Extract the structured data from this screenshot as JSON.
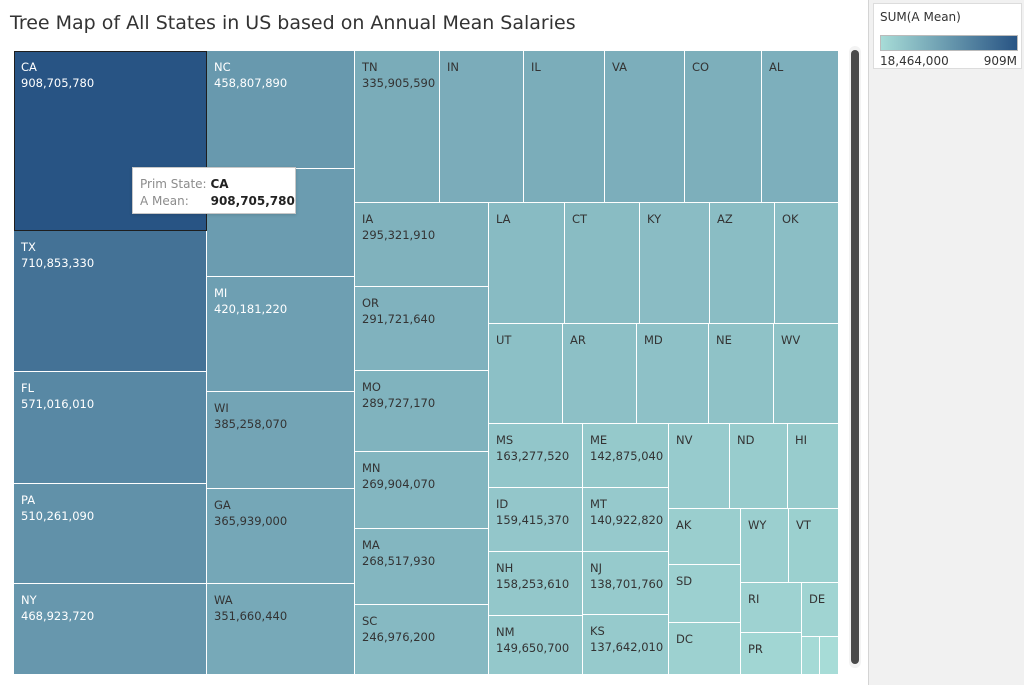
{
  "chart_data": {
    "type": "treemap",
    "title": "Tree Map of All States in US based on Annual Mean Salaries",
    "color_legend": {
      "title": "SUM(A Mean)",
      "min_label": "18,464,000",
      "max_label": "909M",
      "min_value": 18464000,
      "max_value": 909000000,
      "color_low": "#a7dcd7",
      "color_high": "#285484"
    },
    "colors": {
      "label_dark_bg": "#ffffff",
      "label_light_bg": "#333333"
    },
    "cells": [
      {
        "state": "CA",
        "value": 908705780,
        "value_label": "908,705,780"
      },
      {
        "state": "TX",
        "value": 710853330,
        "value_label": "710,853,330"
      },
      {
        "state": "FL",
        "value": 571016010,
        "value_label": "571,016,010"
      },
      {
        "state": "PA",
        "value": 510261090,
        "value_label": "510,261,090"
      },
      {
        "state": "NY",
        "value": 468923720,
        "value_label": "468,923,720"
      },
      {
        "state": "NC",
        "value": 458807890,
        "value_label": "458,807,890"
      },
      {
        "state": "",
        "value": 440000000,
        "value_label": ""
      },
      {
        "state": "MI",
        "value": 420181220,
        "value_label": "420,181,220"
      },
      {
        "state": "WI",
        "value": 385258070,
        "value_label": "385,258,070"
      },
      {
        "state": "GA",
        "value": 365939000,
        "value_label": "365,939,000"
      },
      {
        "state": "WA",
        "value": 351660440,
        "value_label": "351,660,440"
      },
      {
        "state": "TN",
        "value": 335905590,
        "value_label": "335,905,590"
      },
      {
        "state": "IN",
        "value": 330000000,
        "value_label": ""
      },
      {
        "state": "IL",
        "value": 325000000,
        "value_label": ""
      },
      {
        "state": "VA",
        "value": 320000000,
        "value_label": ""
      },
      {
        "state": "CO",
        "value": 315000000,
        "value_label": ""
      },
      {
        "state": "AL",
        "value": 310000000,
        "value_label": ""
      },
      {
        "state": "IA",
        "value": 295321910,
        "value_label": "295,321,910"
      },
      {
        "state": "OR",
        "value": 291721640,
        "value_label": "291,721,640"
      },
      {
        "state": "MO",
        "value": 289727170,
        "value_label": "289,727,170"
      },
      {
        "state": "MN",
        "value": 269904070,
        "value_label": "269,904,070"
      },
      {
        "state": "MA",
        "value": 268517930,
        "value_label": "268,517,930"
      },
      {
        "state": "SC",
        "value": 246976200,
        "value_label": "246,976,200"
      },
      {
        "state": "LA",
        "value": 235000000,
        "value_label": ""
      },
      {
        "state": "CT",
        "value": 230000000,
        "value_label": ""
      },
      {
        "state": "KY",
        "value": 225000000,
        "value_label": ""
      },
      {
        "state": "AZ",
        "value": 220000000,
        "value_label": ""
      },
      {
        "state": "OK",
        "value": 215000000,
        "value_label": ""
      },
      {
        "state": "UT",
        "value": 205000000,
        "value_label": ""
      },
      {
        "state": "AR",
        "value": 200000000,
        "value_label": ""
      },
      {
        "state": "MD",
        "value": 195000000,
        "value_label": ""
      },
      {
        "state": "NE",
        "value": 190000000,
        "value_label": ""
      },
      {
        "state": "WV",
        "value": 185000000,
        "value_label": ""
      },
      {
        "state": "MS",
        "value": 163277520,
        "value_label": "163,277,520"
      },
      {
        "state": "ID",
        "value": 159415370,
        "value_label": "159,415,370"
      },
      {
        "state": "NH",
        "value": 158253610,
        "value_label": "158,253,610"
      },
      {
        "state": "NM",
        "value": 149650700,
        "value_label": "149,650,700"
      },
      {
        "state": "ME",
        "value": 142875040,
        "value_label": "142,875,040"
      },
      {
        "state": "MT",
        "value": 140922820,
        "value_label": "140,922,820"
      },
      {
        "state": "NJ",
        "value": 138701760,
        "value_label": "138,701,760"
      },
      {
        "state": "KS",
        "value": 137642010,
        "value_label": "137,642,010"
      },
      {
        "state": "NV",
        "value": 130000000,
        "value_label": ""
      },
      {
        "state": "ND",
        "value": 125000000,
        "value_label": ""
      },
      {
        "state": "HI",
        "value": 122000000,
        "value_label": ""
      },
      {
        "state": "AK",
        "value": 110000000,
        "value_label": ""
      },
      {
        "state": "WY",
        "value": 105000000,
        "value_label": ""
      },
      {
        "state": "VT",
        "value": 100000000,
        "value_label": ""
      },
      {
        "state": "SD",
        "value": 95000000,
        "value_label": ""
      },
      {
        "state": "DC",
        "value": 90000000,
        "value_label": ""
      },
      {
        "state": "RI",
        "value": 85000000,
        "value_label": ""
      },
      {
        "state": "DE",
        "value": 70000000,
        "value_label": ""
      },
      {
        "state": "PR",
        "value": 60000000,
        "value_label": ""
      },
      {
        "state": "",
        "value": 30000000,
        "value_label": ""
      },
      {
        "state": "",
        "value": 18464000,
        "value_label": ""
      }
    ],
    "selected_state": "CA",
    "tooltip": {
      "state_key": "Prim State:",
      "state_value": "CA",
      "mean_key": "A Mean:",
      "mean_value": "908,705,780"
    }
  }
}
